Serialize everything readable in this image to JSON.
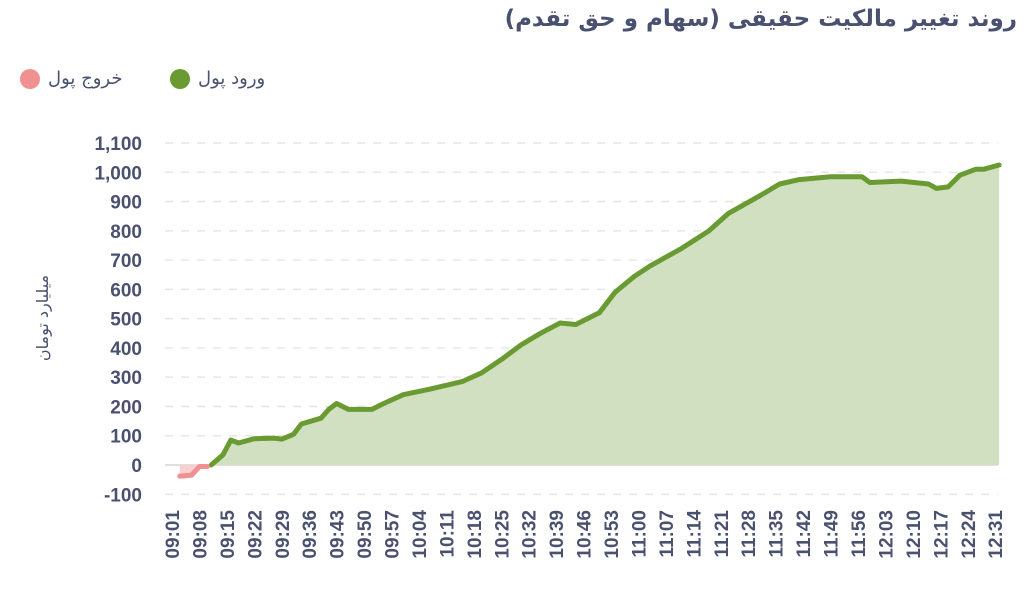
{
  "chart_data": {
    "type": "area",
    "title": "روند تغییر مالکیت حقیقی (سهام و حق تقدم)",
    "ylabel": "میلیارد تومان",
    "xlabel": "",
    "ylim": [
      -100,
      1100
    ],
    "yticks": [
      -100,
      0,
      100,
      200,
      300,
      400,
      500,
      600,
      700,
      800,
      900,
      1000,
      1100
    ],
    "ytick_labels": [
      "-100",
      "0",
      "100",
      "200",
      "300",
      "400",
      "500",
      "600",
      "700",
      "800",
      "900",
      "1,000",
      "1,100"
    ],
    "xtick_labels": [
      "09:01",
      "09:08",
      "09:15",
      "09:22",
      "09:29",
      "09:36",
      "09:43",
      "09:50",
      "09:57",
      "10:04",
      "10:11",
      "10:18",
      "10:25",
      "10:32",
      "10:39",
      "10:46",
      "10:53",
      "11:00",
      "11:07",
      "11:14",
      "11:21",
      "11:28",
      "11:35",
      "11:42",
      "11:49",
      "11:56",
      "12:03",
      "12:10",
      "12:17",
      "12:24",
      "12:31"
    ],
    "grid": true,
    "legend_placement": "top-left",
    "series": [
      {
        "name": "ورود پول",
        "color": "#6a9a32",
        "fill": "#d2e0c2",
        "x": [
          "09:11",
          "09:14",
          "09:16",
          "09:18",
          "09:22",
          "09:27",
          "09:29",
          "09:32",
          "09:34",
          "09:39",
          "09:41",
          "09:43",
          "09:46",
          "09:52",
          "09:55",
          "10:00",
          "10:07",
          "10:15",
          "10:20",
          "10:25",
          "10:30",
          "10:35",
          "10:40",
          "10:44",
          "10:50",
          "10:54",
          "10:59",
          "11:03",
          "11:11",
          "11:18",
          "11:23",
          "11:31",
          "11:36",
          "11:41",
          "11:49",
          "11:57",
          "11:59",
          "12:07",
          "12:14",
          "12:16",
          "12:19",
          "12:22",
          "12:26",
          "12:28",
          "12:32"
        ],
        "values": [
          0,
          35,
          85,
          75,
          90,
          92,
          88,
          105,
          140,
          160,
          190,
          210,
          190,
          190,
          210,
          240,
          260,
          285,
          315,
          360,
          410,
          450,
          485,
          480,
          520,
          590,
          645,
          680,
          740,
          800,
          860,
          920,
          960,
          975,
          985,
          985,
          965,
          970,
          960,
          945,
          950,
          990,
          1010,
          1010,
          1025
        ]
      },
      {
        "name": "خروج پول",
        "color": "#f09090",
        "fill": "#f8d0d0",
        "x": [
          "09:03",
          "09:06",
          "09:08",
          "09:10"
        ],
        "values": [
          -38,
          -35,
          -5,
          -5
        ]
      }
    ]
  }
}
